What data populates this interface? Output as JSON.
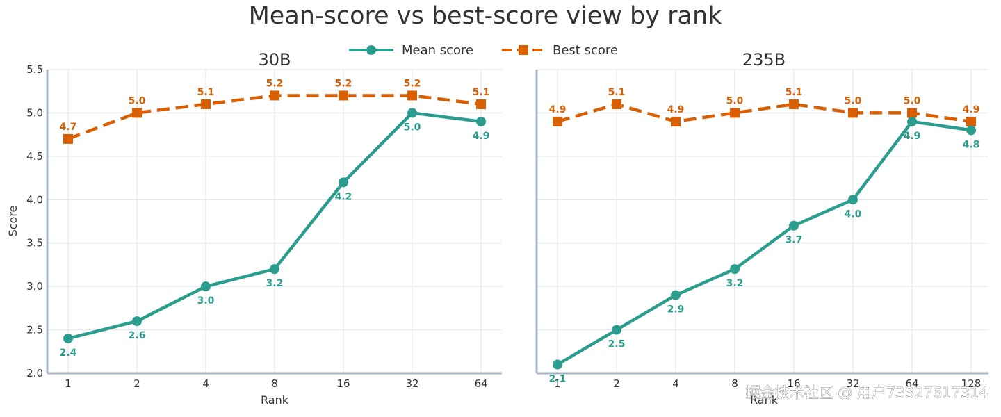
{
  "chart_data": {
    "type": "line",
    "title": "Mean-score vs best-score view by rank",
    "legend": {
      "placement": "top-center",
      "entries": [
        "Mean score",
        "Best score"
      ]
    },
    "colors": {
      "mean": "#2A9D8F",
      "best": "#D95F02",
      "grid": "#E3E7EE",
      "spine": "#A9B4C8",
      "text": "#333333"
    },
    "ylabel": "Score",
    "ylim": [
      2.0,
      5.5
    ],
    "yticks": [
      "2.0",
      "2.5",
      "3.0",
      "3.5",
      "4.0",
      "4.5",
      "5.0",
      "5.5"
    ],
    "grid": true,
    "subplots": [
      {
        "title": "30B",
        "xlabel": "Rank",
        "categories": [
          "1",
          "2",
          "4",
          "8",
          "16",
          "32",
          "64"
        ],
        "series": [
          {
            "name": "Mean score",
            "values": [
              2.4,
              2.6,
              3.0,
              3.2,
              4.2,
              5.0,
              4.9
            ],
            "labels": [
              "2.4",
              "2.6",
              "3.0",
              "3.2",
              "4.2",
              "5.0",
              "4.9"
            ]
          },
          {
            "name": "Best score",
            "values": [
              4.7,
              5.0,
              5.1,
              5.2,
              5.2,
              5.2,
              5.1
            ],
            "labels": [
              "4.7",
              "5.0",
              "5.1",
              "5.2",
              "5.2",
              "5.2",
              "5.1"
            ]
          }
        ]
      },
      {
        "title": "235B",
        "xlabel": "Rank",
        "categories": [
          "1",
          "2",
          "4",
          "8",
          "16",
          "32",
          "64",
          "128"
        ],
        "series": [
          {
            "name": "Mean score",
            "values": [
              2.1,
              2.5,
              2.9,
              3.2,
              3.7,
              4.0,
              4.9,
              4.8
            ],
            "labels": [
              "2.1",
              "2.5",
              "2.9",
              "3.2",
              "3.7",
              "4.0",
              "4.9",
              "4.8"
            ]
          },
          {
            "name": "Best score",
            "values": [
              4.9,
              5.1,
              4.9,
              5.0,
              5.1,
              5.0,
              5.0,
              4.9
            ],
            "labels": [
              "4.9",
              "5.1",
              "4.9",
              "5.0",
              "5.1",
              "5.0",
              "5.0",
              "4.9"
            ]
          }
        ]
      }
    ]
  },
  "watermark": "掘金技术社区 @ 用户7332761731​4"
}
